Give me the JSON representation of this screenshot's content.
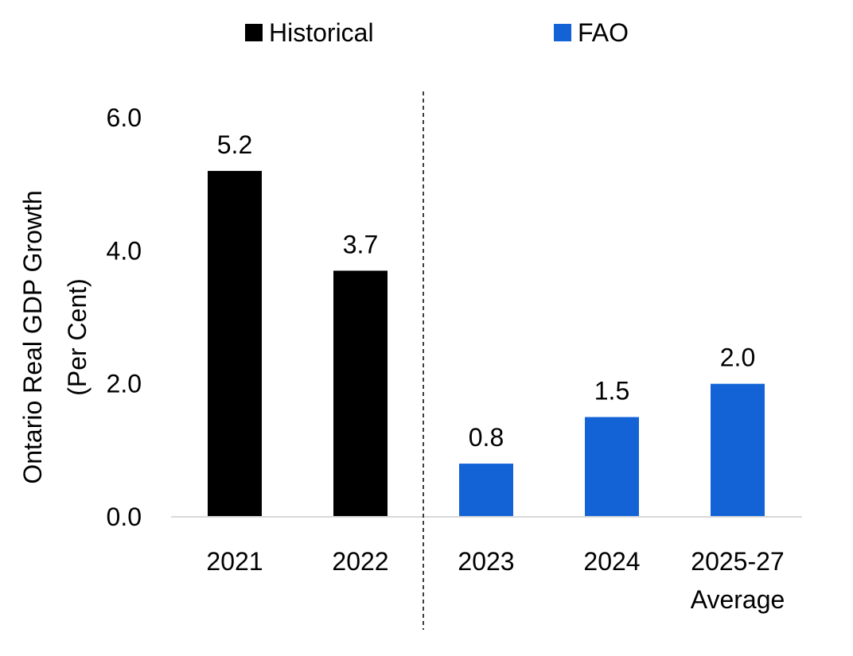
{
  "chart_data": {
    "type": "bar",
    "title": "",
    "xlabel": "",
    "ylabel_lines": [
      "Ontario Real GDP Growth",
      "(Per Cent)"
    ],
    "ylim": [
      0,
      6
    ],
    "yticks": [
      "0.0",
      "2.0",
      "4.0",
      "6.0"
    ],
    "ytick_values": [
      0,
      2,
      4,
      6
    ],
    "grid": false,
    "legend_position": "top",
    "legend": [
      {
        "name": "Historical",
        "color": "#000000"
      },
      {
        "name": "FAO",
        "color": "#1363D7"
      }
    ],
    "categories": [
      {
        "lines": [
          "2021"
        ],
        "series": 0
      },
      {
        "lines": [
          "2022"
        ],
        "series": 0
      },
      {
        "lines": [
          "2023"
        ],
        "series": 1
      },
      {
        "lines": [
          "2024"
        ],
        "series": 1
      },
      {
        "lines": [
          "2025-27",
          "Average"
        ],
        "series": 1
      }
    ],
    "values": [
      5.2,
      3.7,
      0.8,
      1.5,
      2.0
    ],
    "data_labels": [
      "5.2",
      "3.7",
      "0.8",
      "1.5",
      "2.0"
    ],
    "divider_after_index": 1
  }
}
